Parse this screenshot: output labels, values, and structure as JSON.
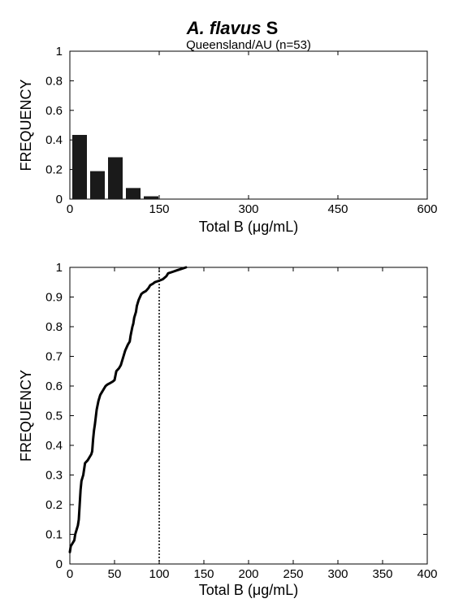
{
  "figure": {
    "title_italic": "A. flavus",
    "title_rest": " S"
  },
  "chart_data": [
    {
      "type": "bar",
      "subtitle": "Queensland/AU (n=53)",
      "xlabel": "Total B (μg/mL)",
      "ylabel": "FREQUENCY",
      "xlim": [
        0,
        600
      ],
      "ylim": [
        0,
        1
      ],
      "xticks": [
        0,
        150,
        300,
        450,
        600
      ],
      "yticks": [
        0,
        0.2,
        0.4,
        0.6,
        0.8,
        1
      ],
      "ytick_labels": [
        "0",
        "0.2",
        "0.4",
        "0.6",
        "0.8",
        "1"
      ],
      "bin_edges": [
        0,
        30,
        60,
        90,
        120,
        150
      ],
      "values": [
        0.434,
        0.189,
        0.283,
        0.075,
        0.019
      ],
      "bar_color": "#1a1a1a",
      "grid": false
    },
    {
      "type": "line",
      "subtitle": "",
      "xlabel": "Total B (μg/mL)",
      "ylabel": "FREQUENCY",
      "xlim": [
        0,
        400
      ],
      "ylim": [
        0,
        1
      ],
      "xticks": [
        0,
        50,
        100,
        150,
        200,
        250,
        300,
        350,
        400
      ],
      "yticks": [
        0,
        0.1,
        0.2,
        0.3,
        0.4,
        0.5,
        0.6,
        0.7,
        0.8,
        0.9,
        1
      ],
      "ytick_labels": [
        "0",
        "0.1",
        "0.2",
        "0.3",
        "0.4",
        "0.5",
        "0.6",
        "0.7",
        "0.8",
        "0.9",
        "1"
      ],
      "series": [
        {
          "x": [
            0,
            1,
            3,
            5,
            6,
            8,
            9,
            10,
            11,
            12,
            13,
            15,
            17,
            20,
            22,
            24,
            25,
            26,
            27,
            28,
            30,
            32,
            34,
            36,
            37,
            38,
            40,
            42,
            45,
            48,
            50,
            52,
            55,
            57,
            58,
            60,
            62,
            65,
            67,
            68,
            70,
            71,
            72,
            74,
            75,
            77,
            80,
            82,
            85,
            88,
            90,
            93,
            95,
            97,
            100,
            104,
            108,
            110,
            115,
            120,
            125,
            130
          ],
          "y": [
            0.04,
            0.06,
            0.07,
            0.08,
            0.1,
            0.12,
            0.13,
            0.15,
            0.2,
            0.25,
            0.28,
            0.3,
            0.34,
            0.35,
            0.36,
            0.37,
            0.38,
            0.42,
            0.45,
            0.47,
            0.52,
            0.55,
            0.57,
            0.58,
            0.585,
            0.59,
            0.6,
            0.605,
            0.61,
            0.615,
            0.62,
            0.65,
            0.66,
            0.67,
            0.68,
            0.7,
            0.72,
            0.74,
            0.75,
            0.77,
            0.8,
            0.81,
            0.83,
            0.85,
            0.87,
            0.89,
            0.91,
            0.915,
            0.92,
            0.93,
            0.94,
            0.945,
            0.95,
            0.952,
            0.955,
            0.96,
            0.97,
            0.98,
            0.985,
            0.99,
            0.995,
            1.0
          ],
          "color": "#000000"
        }
      ],
      "reference_line_x": 100,
      "grid": false
    }
  ]
}
